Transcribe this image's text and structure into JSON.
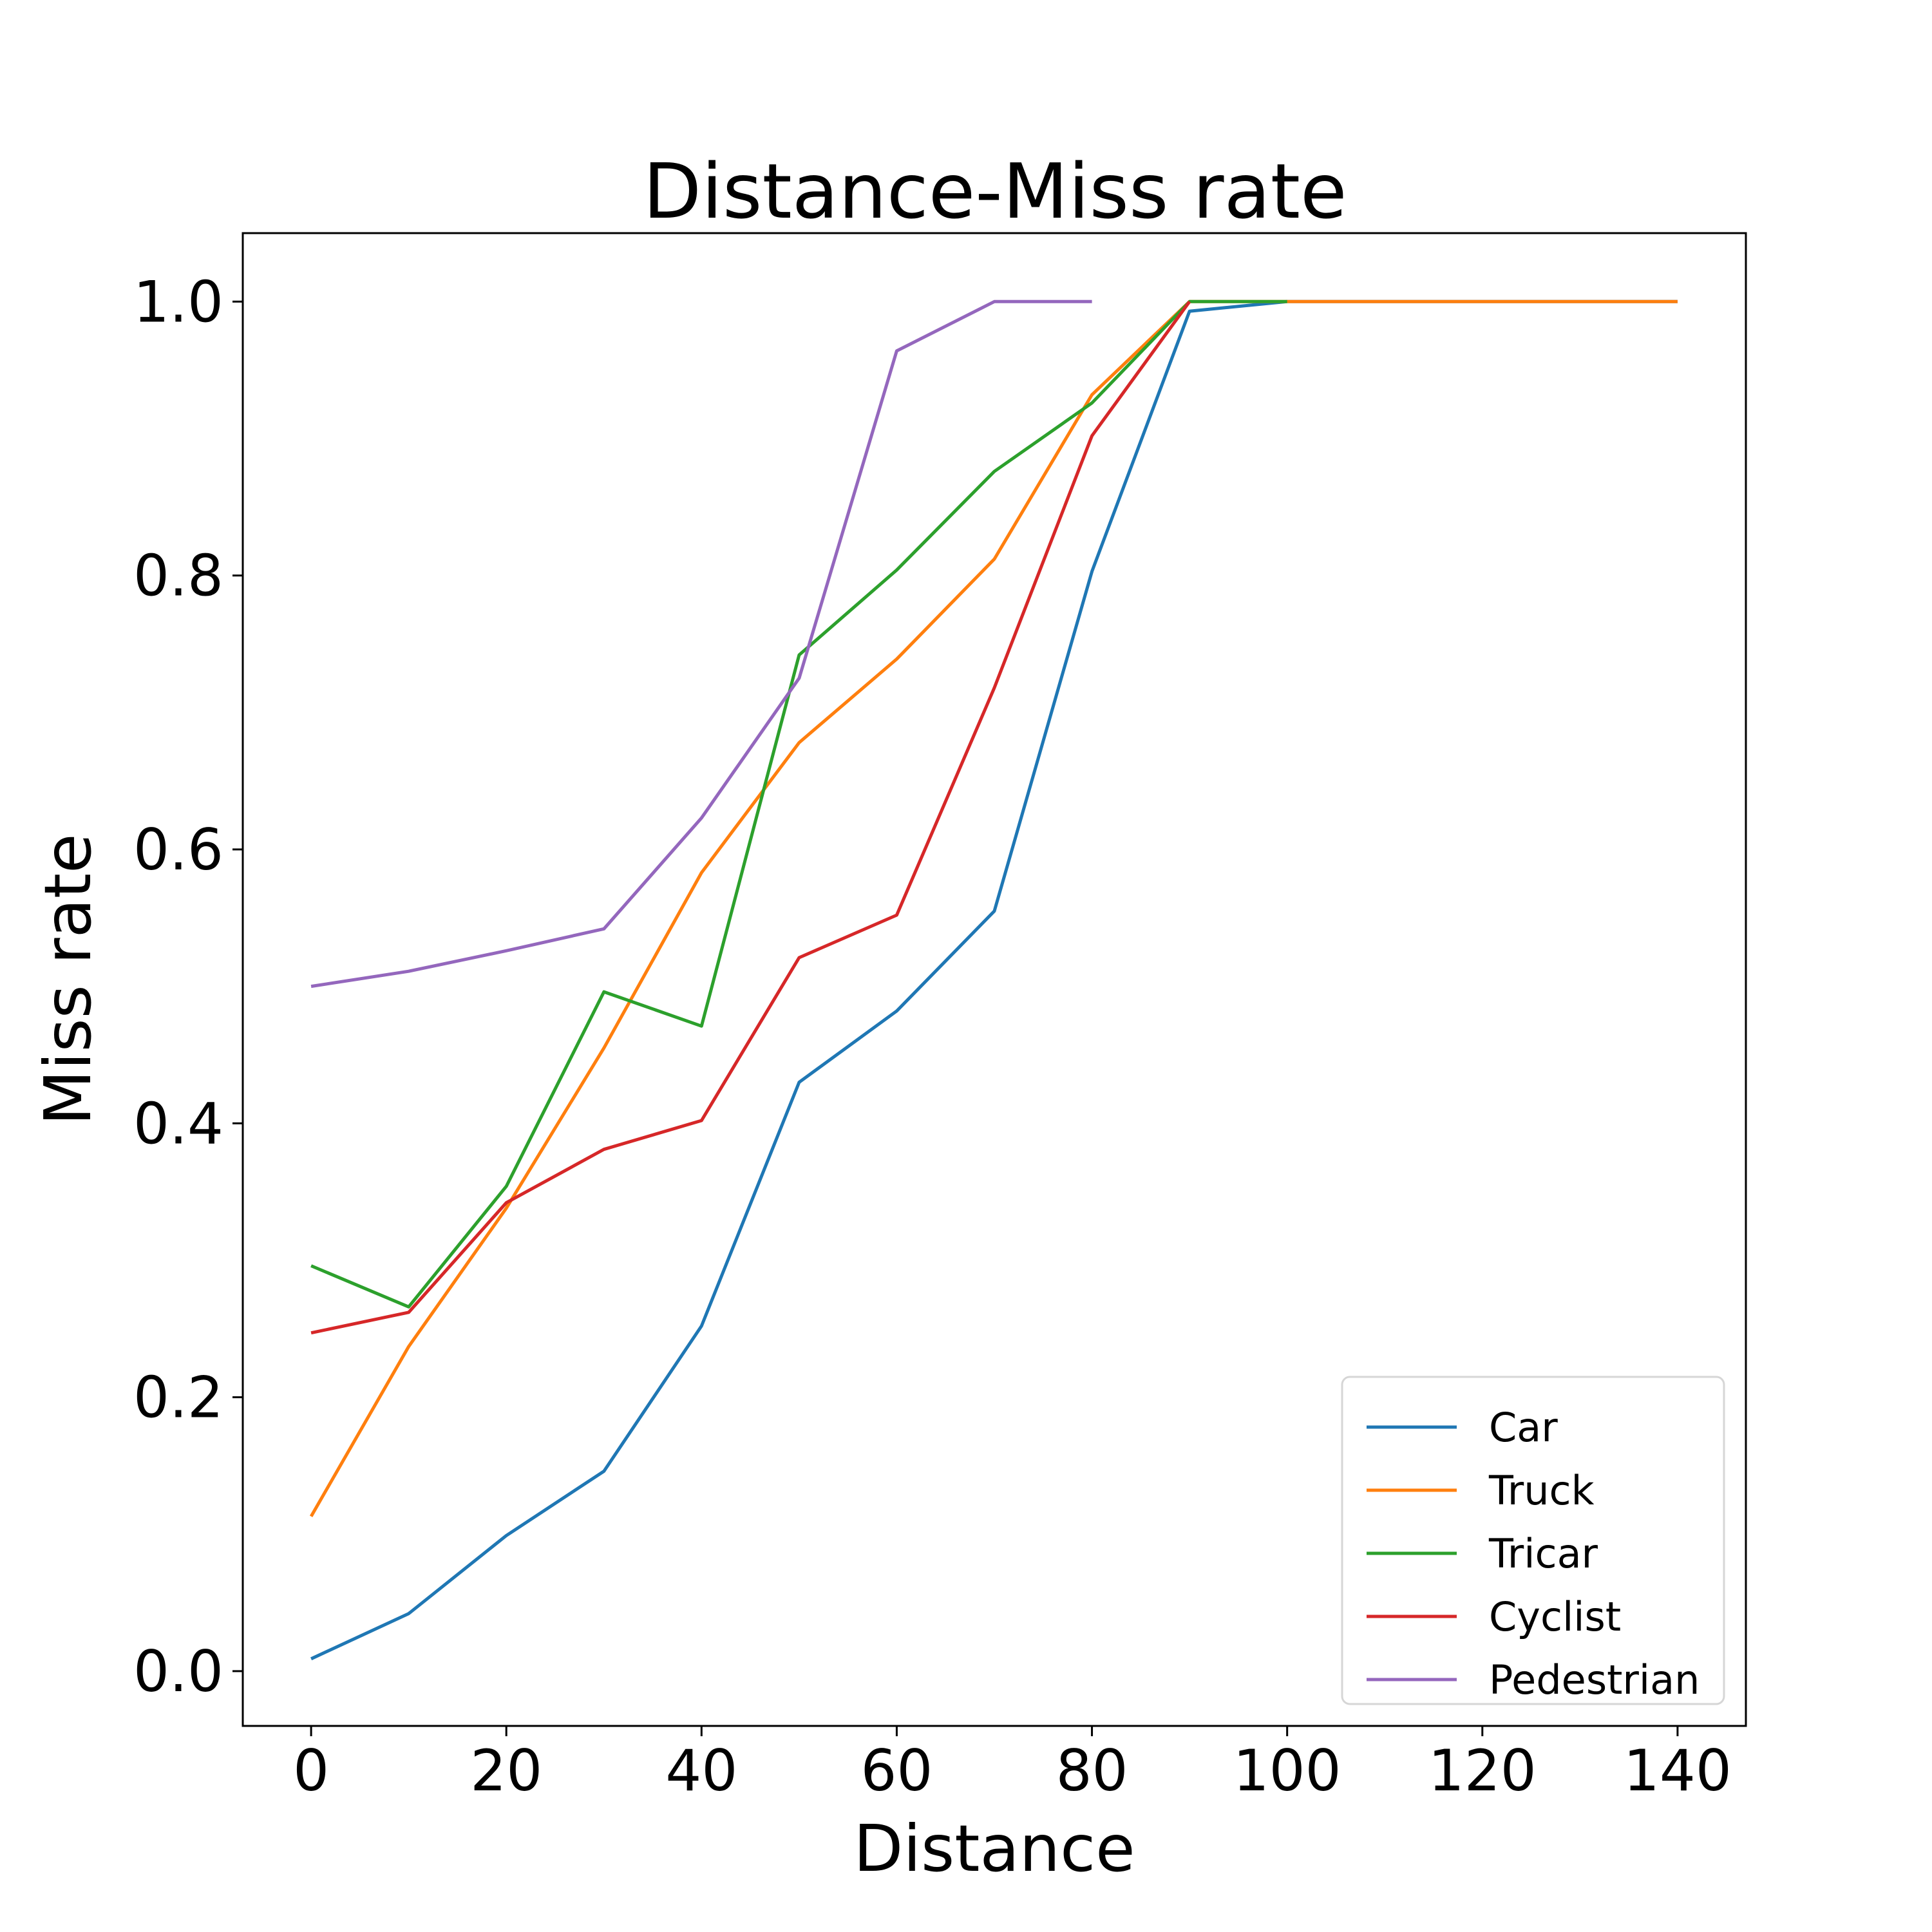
{
  "chart_data": {
    "type": "line",
    "title": "Distance-Miss rate",
    "xlabel": "Distance",
    "ylabel": "Miss rate",
    "xlim": [
      -7,
      147
    ],
    "ylim": [
      -0.04,
      1.05
    ],
    "xticks": [
      0,
      20,
      40,
      60,
      80,
      100,
      120,
      140
    ],
    "xtick_labels": [
      "0",
      "20",
      "40",
      "60",
      "80",
      "100",
      "120",
      "140"
    ],
    "yticks": [
      0.0,
      0.2,
      0.4,
      0.6,
      0.8,
      1.0
    ],
    "ytick_labels": [
      "0.0",
      "0.2",
      "0.4",
      "0.6",
      "0.8",
      "1.0"
    ],
    "grid": false,
    "legend_position": "lower-right",
    "series": [
      {
        "name": "Car",
        "color": "#1f77b4",
        "x": [
          0,
          10,
          20,
          30,
          40,
          50,
          60,
          70,
          80,
          90,
          100,
          110,
          120,
          130,
          140
        ],
        "y": [
          0.009,
          0.042,
          0.099,
          0.146,
          0.252,
          0.43,
          0.482,
          0.555,
          0.803,
          0.993,
          1.0,
          1.0,
          1.0,
          1.0,
          1.0
        ]
      },
      {
        "name": "Truck",
        "color": "#ff7f0e",
        "x": [
          0,
          10,
          20,
          30,
          40,
          50,
          60,
          70,
          80,
          90,
          100,
          110,
          120,
          130,
          140
        ],
        "y": [
          0.113,
          0.237,
          0.338,
          0.455,
          0.583,
          0.678,
          0.739,
          0.812,
          0.932,
          1.0,
          1.0,
          1.0,
          1.0,
          1.0,
          1.0
        ]
      },
      {
        "name": "Tricar",
        "color": "#2ca02c",
        "x": [
          0,
          10,
          20,
          30,
          40,
          50,
          60,
          70,
          80,
          90,
          100
        ],
        "y": [
          0.296,
          0.266,
          0.354,
          0.496,
          0.471,
          0.742,
          0.804,
          0.876,
          0.926,
          1.0,
          1.0
        ]
      },
      {
        "name": "Cyclist",
        "color": "#d62728",
        "x": [
          0,
          10,
          20,
          30,
          40,
          50,
          60,
          70,
          80,
          90
        ],
        "y": [
          0.247,
          0.262,
          0.342,
          0.381,
          0.402,
          0.521,
          0.552,
          0.718,
          0.902,
          1.0
        ]
      },
      {
        "name": "Pedestrian",
        "color": "#9467bd",
        "x": [
          0,
          10,
          20,
          30,
          40,
          50,
          60,
          70,
          80
        ],
        "y": [
          0.5,
          0.511,
          0.526,
          0.542,
          0.623,
          0.725,
          0.964,
          1.0,
          1.0
        ]
      }
    ]
  }
}
